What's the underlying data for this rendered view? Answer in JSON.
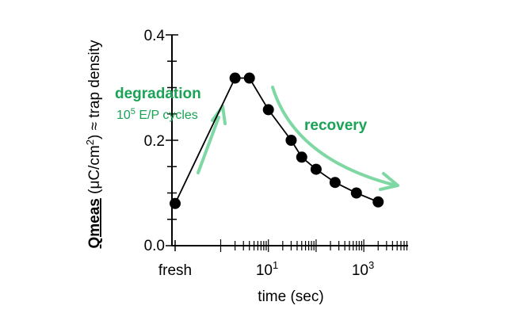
{
  "chart_data": {
    "type": "scatter",
    "x_scale": "log",
    "xlabel": "time (sec)",
    "ylabel": {
      "bold": "Qmeas",
      "rest_open": " (μC/cm",
      "rest_sup": "2",
      "rest_close": ") ≈ trap density"
    },
    "ylim": [
      0,
      0.4
    ],
    "yticks": [
      "0.0",
      "0.2",
      "0.4"
    ],
    "xtick_labels": [
      {
        "text": "fresh",
        "base": null,
        "exp": null
      },
      {
        "text": "",
        "base": "10",
        "exp": "1"
      },
      {
        "text": "",
        "base": "10",
        "exp": "3"
      }
    ],
    "points": [
      {
        "x": "fresh",
        "y": 0.08
      },
      {
        "x": 2,
        "y": 0.318
      },
      {
        "x": 4,
        "y": 0.318
      },
      {
        "x": 10,
        "y": 0.258
      },
      {
        "x": 30,
        "y": 0.2
      },
      {
        "x": 50,
        "y": 0.168
      },
      {
        "x": 100,
        "y": 0.145
      },
      {
        "x": 250,
        "y": 0.12
      },
      {
        "x": 700,
        "y": 0.1
      },
      {
        "x": 2000,
        "y": 0.083
      }
    ],
    "annotations": {
      "degradation": "degradation",
      "cycles": {
        "base": "10",
        "exp": "5",
        "rest": " E/P cycles"
      },
      "recovery": "recovery"
    },
    "colors": {
      "annotation_green": "#1aa256",
      "arrow_green": "#7fd8a4",
      "marker": "#000000"
    }
  }
}
